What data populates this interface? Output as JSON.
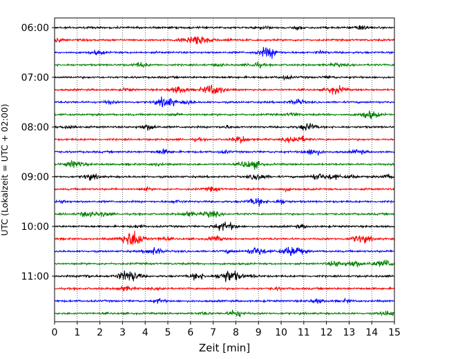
{
  "chart_data": {
    "type": "line",
    "title": "",
    "xlabel": "Zeit  [min]",
    "ylabel": "UTC (Lokalzeit = UTC + 02:00)",
    "xlim": [
      0,
      15
    ],
    "x_ticks": [
      "0",
      "1",
      "2",
      "3",
      "4",
      "5",
      "6",
      "7",
      "8",
      "9",
      "10",
      "11",
      "12",
      "13",
      "14",
      "15"
    ],
    "y_ticks": [
      "06:00",
      "07:00",
      "08:00",
      "09:00",
      "10:00",
      "11:00"
    ],
    "grid": "vertical dotted lines at each minute",
    "legend": "none",
    "colors": [
      "#000000",
      "#ff0000",
      "#0000ff",
      "#008000"
    ],
    "rows_start": "06:00",
    "row_interval_min": 15,
    "row_count": 24,
    "event_amplitude_note": "bursts listed as [minute, relative amplitude]",
    "events": [
      [
        [
          9.2,
          0.4
        ],
        [
          10.8,
          0.4
        ],
        [
          13.6,
          0.6
        ]
      ],
      [
        [
          5.8,
          0.6
        ],
        [
          6.4,
          1.2
        ],
        [
          7.6,
          0.4
        ],
        [
          0.1,
          0.5
        ]
      ],
      [
        [
          1.9,
          0.5
        ],
        [
          9.3,
          0.9
        ],
        [
          9.6,
          0.6
        ],
        [
          11.8,
          0.3
        ]
      ],
      [
        [
          3.8,
          0.6
        ],
        [
          8.9,
          0.6
        ],
        [
          7.2,
          0.3
        ],
        [
          12.5,
          0.4
        ]
      ],
      [
        [
          10.2,
          0.4
        ],
        [
          12.1,
          0.3
        ]
      ],
      [
        [
          5.5,
          0.9
        ],
        [
          7.0,
          1.3
        ],
        [
          12.3,
          0.8
        ],
        [
          12.7,
          0.4
        ],
        [
          3.2,
          0.3
        ]
      ],
      [
        [
          4.8,
          0.9
        ],
        [
          5.1,
          0.6
        ],
        [
          5.9,
          0.4
        ],
        [
          10.7,
          0.7
        ],
        [
          2.4,
          0.3
        ]
      ],
      [
        [
          13.9,
          1.0
        ],
        [
          10.5,
          0.4
        ],
        [
          5.3,
          0.3
        ]
      ],
      [
        [
          0.7,
          0.5
        ],
        [
          4.0,
          0.5
        ],
        [
          4.3,
          0.4
        ],
        [
          11.2,
          0.9
        ],
        [
          7.6,
          0.3
        ]
      ],
      [
        [
          8.2,
          0.8
        ],
        [
          10.8,
          0.8
        ],
        [
          10.4,
          0.4
        ],
        [
          6.3,
          0.3
        ]
      ],
      [
        [
          4.8,
          0.6
        ],
        [
          11.4,
          0.8
        ],
        [
          13.4,
          0.5
        ],
        [
          7.5,
          0.3
        ]
      ],
      [
        [
          0.9,
          0.9
        ],
        [
          8.5,
          0.8
        ],
        [
          8.9,
          0.6
        ],
        [
          4.5,
          0.3
        ]
      ],
      [
        [
          1.6,
          0.7
        ],
        [
          9.0,
          0.8
        ],
        [
          11.6,
          0.8
        ],
        [
          12.3,
          0.6
        ],
        [
          13.1,
          0.4
        ],
        [
          14.7,
          0.5
        ]
      ],
      [
        [
          7.0,
          0.5
        ],
        [
          4.0,
          0.3
        ],
        [
          10.2,
          0.3
        ]
      ],
      [
        [
          8.9,
          0.9
        ],
        [
          10.0,
          0.6
        ],
        [
          0.4,
          0.3
        ],
        [
          5.4,
          0.3
        ]
      ],
      [
        [
          1.4,
          0.6
        ],
        [
          2.0,
          0.4
        ],
        [
          5.9,
          0.6
        ],
        [
          6.9,
          0.8
        ],
        [
          2.3,
          0.3
        ]
      ],
      [
        [
          7.4,
          0.9
        ],
        [
          7.8,
          0.5
        ],
        [
          10.9,
          0.4
        ],
        [
          3.7,
          0.3
        ]
      ],
      [
        [
          3.4,
          1.6
        ],
        [
          3.6,
          0.7
        ],
        [
          7.1,
          0.6
        ],
        [
          13.4,
          0.8
        ],
        [
          13.8,
          0.5
        ],
        [
          4.8,
          0.4
        ]
      ],
      [
        [
          4.4,
          0.9
        ],
        [
          8.9,
          1.0
        ],
        [
          10.5,
          1.3
        ],
        [
          7.7,
          0.3
        ]
      ],
      [
        [
          12.4,
          0.7
        ],
        [
          13.2,
          0.8
        ],
        [
          14.6,
          0.9
        ],
        [
          14.0,
          0.3
        ]
      ],
      [
        [
          3.1,
          1.0
        ],
        [
          3.5,
          0.8
        ],
        [
          6.3,
          0.8
        ],
        [
          7.7,
          1.5
        ],
        [
          1.4,
          0.4
        ],
        [
          8.8,
          0.3
        ]
      ],
      [
        [
          3.1,
          0.6
        ],
        [
          4.7,
          0.3
        ],
        [
          9.8,
          0.3
        ]
      ],
      [
        [
          4.6,
          0.5
        ],
        [
          11.6,
          0.5
        ],
        [
          12.9,
          0.3
        ]
      ],
      [
        [
          8.0,
          0.8
        ],
        [
          14.7,
          0.6
        ],
        [
          6.6,
          0.3
        ]
      ]
    ]
  }
}
